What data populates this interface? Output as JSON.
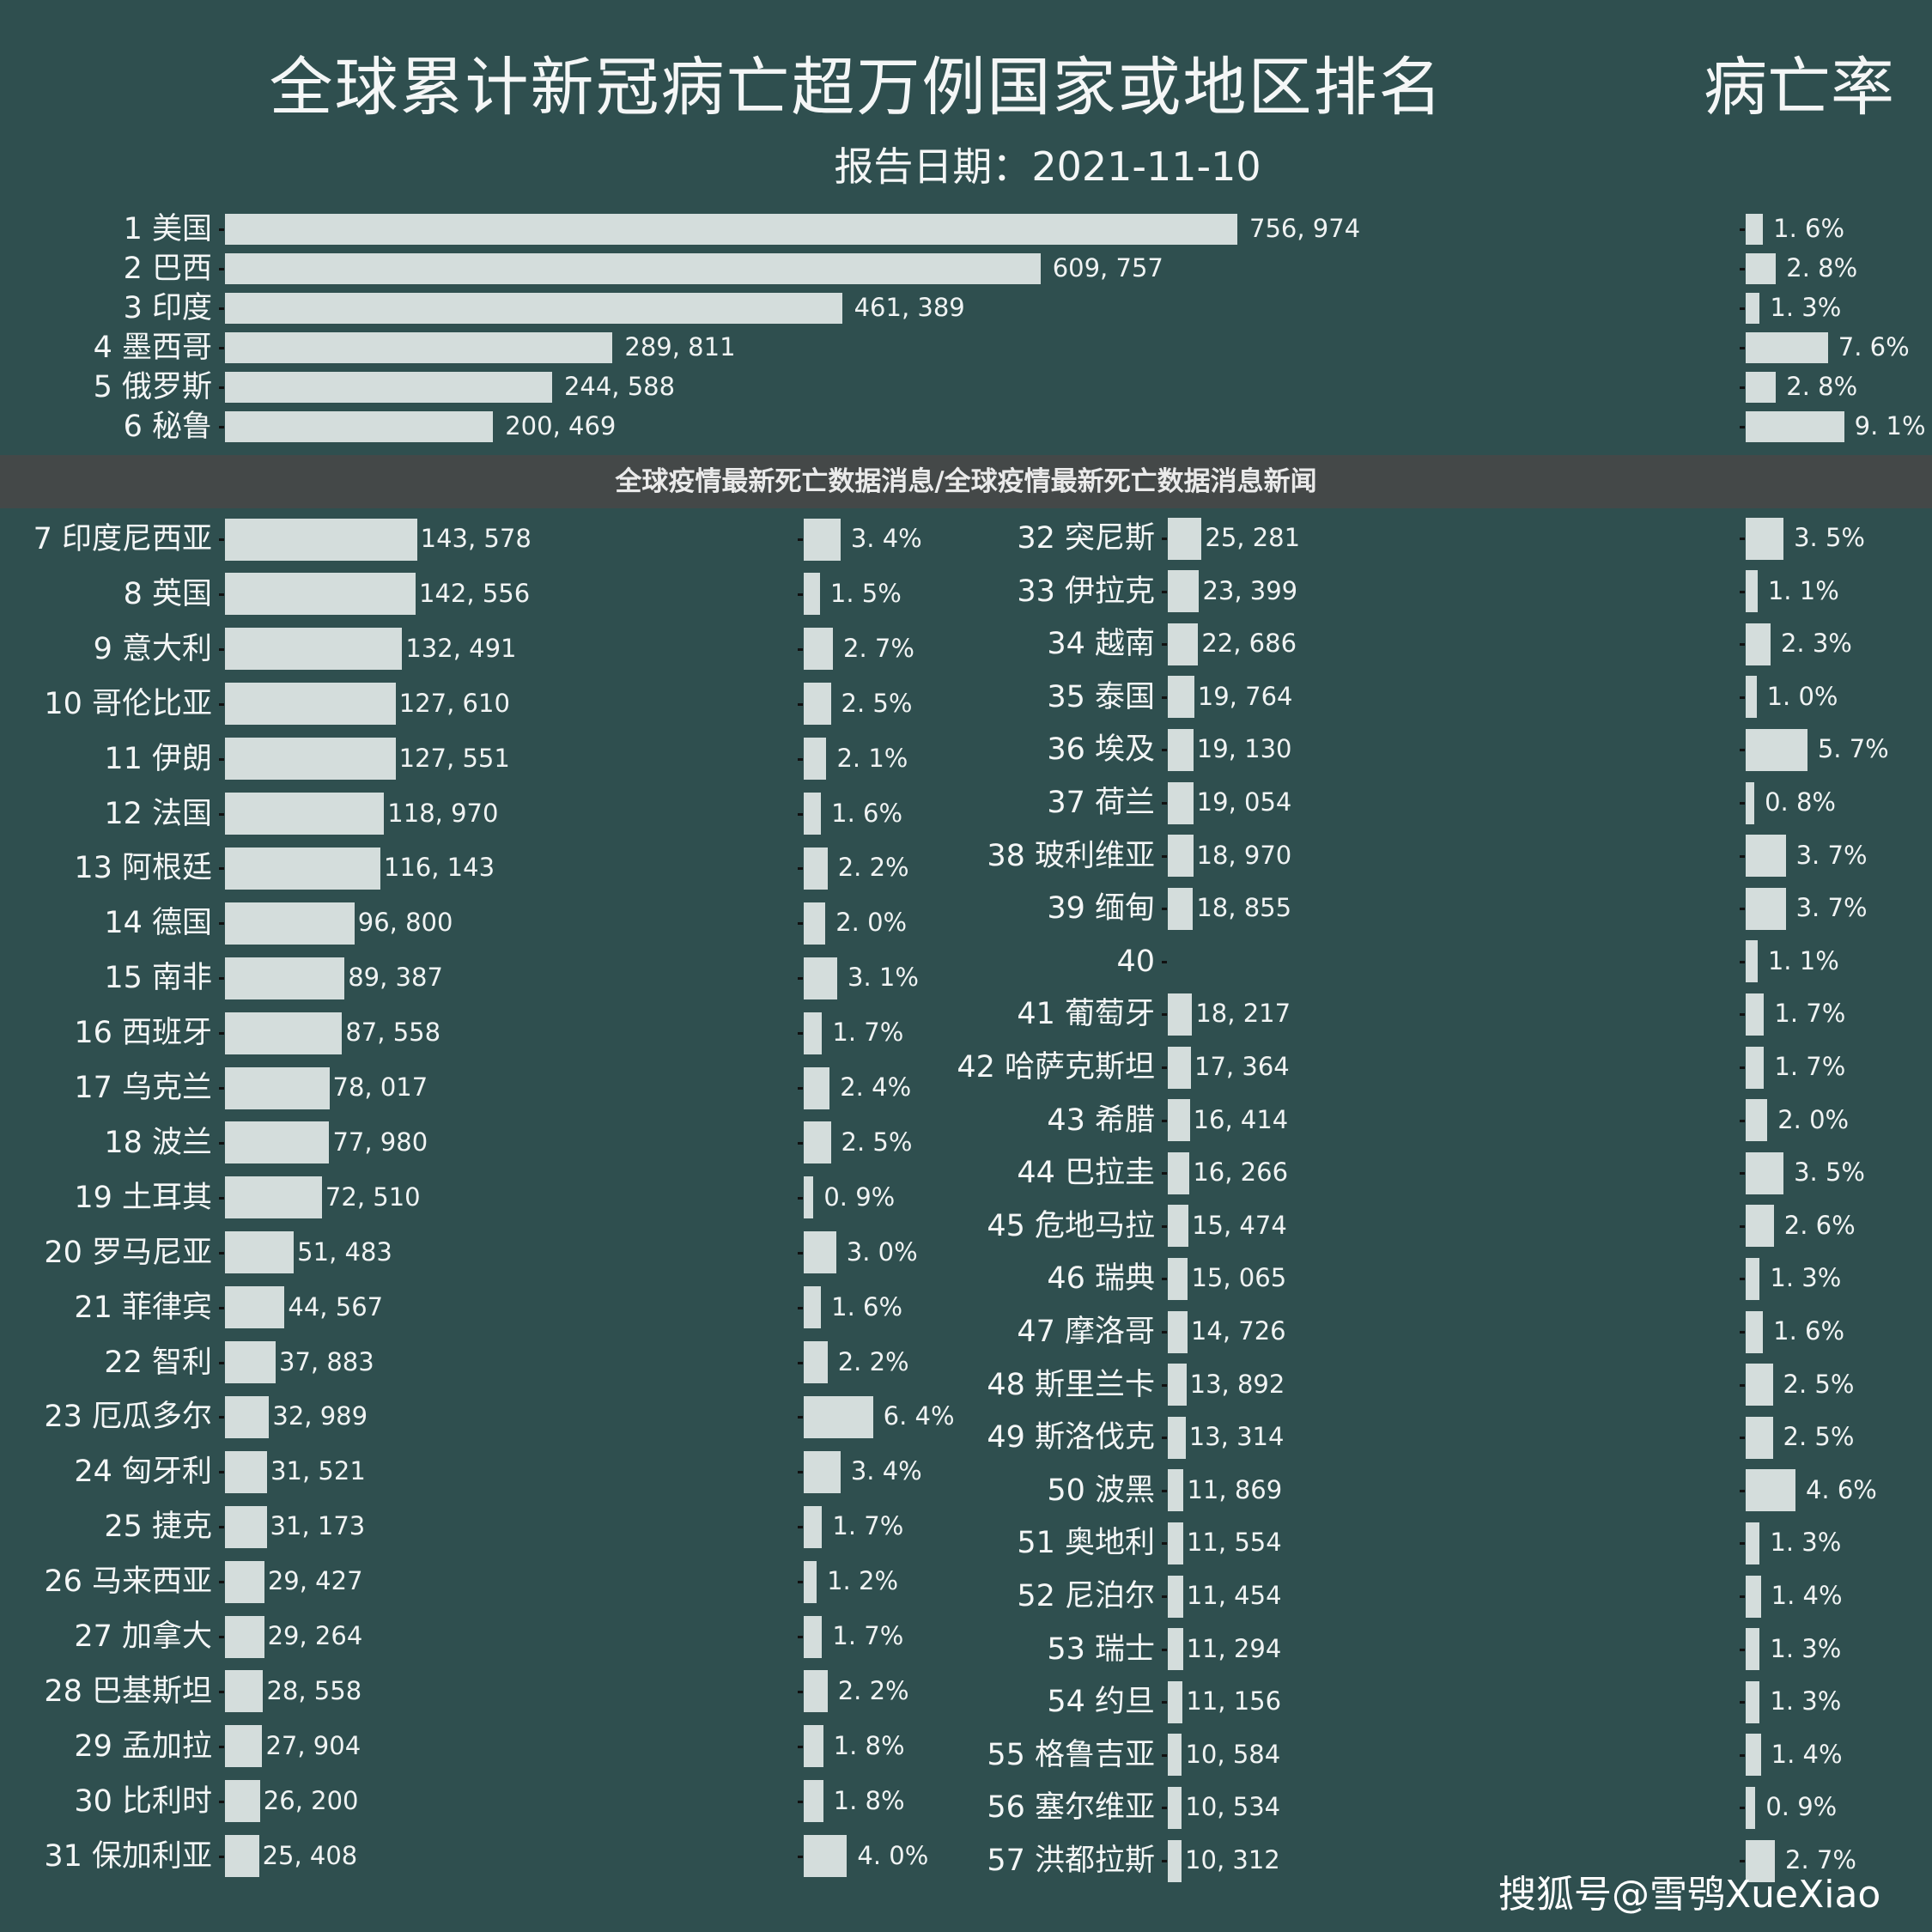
{
  "chart_data": {
    "type": "bar",
    "orientation": "horizontal",
    "title": "全球累计新冠病亡超万例国家或地区排名",
    "rate_title": "病亡率",
    "subtitle": "报告日期：2021-11-10",
    "colors": {
      "background": "#2f4f4f",
      "bar": "#d4dddc",
      "text": "#f4f6f6"
    },
    "grid": false,
    "rows": [
      {
        "rank": 1,
        "name": "美国",
        "value": 756974,
        "value_label": "756, 974",
        "rate": 1.6,
        "rate_label": "1. 6%"
      },
      {
        "rank": 2,
        "name": "巴西",
        "value": 609757,
        "value_label": "609, 757",
        "rate": 2.8,
        "rate_label": "2. 8%"
      },
      {
        "rank": 3,
        "name": "印度",
        "value": 461389,
        "value_label": "461, 389",
        "rate": 1.3,
        "rate_label": "1. 3%"
      },
      {
        "rank": 4,
        "name": "墨西哥",
        "value": 289811,
        "value_label": "289, 811",
        "rate": 7.6,
        "rate_label": "7. 6%"
      },
      {
        "rank": 5,
        "name": "俄罗斯",
        "value": 244588,
        "value_label": "244, 588",
        "rate": 2.8,
        "rate_label": "2. 8%"
      },
      {
        "rank": 6,
        "name": "秘鲁",
        "value": 200469,
        "value_label": "200, 469",
        "rate": 9.1,
        "rate_label": "9. 1%"
      },
      {
        "rank": 7,
        "name": "印度尼西亚",
        "value": 143578,
        "value_label": "143, 578",
        "rate": 3.4,
        "rate_label": "3. 4%"
      },
      {
        "rank": 8,
        "name": "英国",
        "value": 142556,
        "value_label": "142, 556",
        "rate": 1.5,
        "rate_label": "1. 5%"
      },
      {
        "rank": 9,
        "name": "意大利",
        "value": 132491,
        "value_label": "132, 491",
        "rate": 2.7,
        "rate_label": "2. 7%"
      },
      {
        "rank": 10,
        "name": "哥伦比亚",
        "value": 127610,
        "value_label": "127, 610",
        "rate": 2.5,
        "rate_label": "2. 5%"
      },
      {
        "rank": 11,
        "name": "伊朗",
        "value": 127551,
        "value_label": "127, 551",
        "rate": 2.1,
        "rate_label": "2. 1%"
      },
      {
        "rank": 12,
        "name": "法国",
        "value": 118970,
        "value_label": "118, 970",
        "rate": 1.6,
        "rate_label": "1. 6%"
      },
      {
        "rank": 13,
        "name": "阿根廷",
        "value": 116143,
        "value_label": "116, 143",
        "rate": 2.2,
        "rate_label": "2. 2%"
      },
      {
        "rank": 14,
        "name": "德国",
        "value": 96800,
        "value_label": "96, 800",
        "rate": 2.0,
        "rate_label": "2. 0%"
      },
      {
        "rank": 15,
        "name": "南非",
        "value": 89387,
        "value_label": "89, 387",
        "rate": 3.1,
        "rate_label": "3. 1%"
      },
      {
        "rank": 16,
        "name": "西班牙",
        "value": 87558,
        "value_label": "87, 558",
        "rate": 1.7,
        "rate_label": "1. 7%"
      },
      {
        "rank": 17,
        "name": "乌克兰",
        "value": 78017,
        "value_label": "78, 017",
        "rate": 2.4,
        "rate_label": "2. 4%"
      },
      {
        "rank": 18,
        "name": "波兰",
        "value": 77980,
        "value_label": "77, 980",
        "rate": 2.5,
        "rate_label": "2. 5%"
      },
      {
        "rank": 19,
        "name": "土耳其",
        "value": 72510,
        "value_label": "72, 510",
        "rate": 0.9,
        "rate_label": "0. 9%"
      },
      {
        "rank": 20,
        "name": "罗马尼亚",
        "value": 51483,
        "value_label": "51, 483",
        "rate": 3.0,
        "rate_label": "3. 0%"
      },
      {
        "rank": 21,
        "name": "菲律宾",
        "value": 44567,
        "value_label": "44, 567",
        "rate": 1.6,
        "rate_label": "1. 6%"
      },
      {
        "rank": 22,
        "name": "智利",
        "value": 37883,
        "value_label": "37, 883",
        "rate": 2.2,
        "rate_label": "2. 2%"
      },
      {
        "rank": 23,
        "name": "厄瓜多尔",
        "value": 32989,
        "value_label": "32, 989",
        "rate": 6.4,
        "rate_label": "6. 4%"
      },
      {
        "rank": 24,
        "name": "匈牙利",
        "value": 31521,
        "value_label": "31, 521",
        "rate": 3.4,
        "rate_label": "3. 4%"
      },
      {
        "rank": 25,
        "name": "捷克",
        "value": 31173,
        "value_label": "31, 173",
        "rate": 1.7,
        "rate_label": "1. 7%"
      },
      {
        "rank": 26,
        "name": "马来西亚",
        "value": 29427,
        "value_label": "29, 427",
        "rate": 1.2,
        "rate_label": "1. 2%"
      },
      {
        "rank": 27,
        "name": "加拿大",
        "value": 29264,
        "value_label": "29, 264",
        "rate": 1.7,
        "rate_label": "1. 7%"
      },
      {
        "rank": 28,
        "name": "巴基斯坦",
        "value": 28558,
        "value_label": "28, 558",
        "rate": 2.2,
        "rate_label": "2. 2%"
      },
      {
        "rank": 29,
        "name": "孟加拉",
        "value": 27904,
        "value_label": "27, 904",
        "rate": 1.8,
        "rate_label": "1. 8%"
      },
      {
        "rank": 30,
        "name": "比利时",
        "value": 26200,
        "value_label": "26, 200",
        "rate": 1.8,
        "rate_label": "1. 8%"
      },
      {
        "rank": 31,
        "name": "保加利亚",
        "value": 25408,
        "value_label": "25, 408",
        "rate": 4.0,
        "rate_label": "4. 0%"
      },
      {
        "rank": 32,
        "name": "突尼斯",
        "value": 25281,
        "value_label": "25, 281",
        "rate": 3.5,
        "rate_label": "3. 5%"
      },
      {
        "rank": 33,
        "name": "伊拉克",
        "value": 23399,
        "value_label": "23, 399",
        "rate": 1.1,
        "rate_label": "1. 1%"
      },
      {
        "rank": 34,
        "name": "越南",
        "value": 22686,
        "value_label": "22, 686",
        "rate": 2.3,
        "rate_label": "2. 3%"
      },
      {
        "rank": 35,
        "name": "泰国",
        "value": 19764,
        "value_label": "19, 764",
        "rate": 1.0,
        "rate_label": "1. 0%"
      },
      {
        "rank": 36,
        "name": "埃及",
        "value": 19130,
        "value_label": "19, 130",
        "rate": 5.7,
        "rate_label": "5. 7%"
      },
      {
        "rank": 37,
        "name": "荷兰",
        "value": 19054,
        "value_label": "19, 054",
        "rate": 0.8,
        "rate_label": "0. 8%"
      },
      {
        "rank": 38,
        "name": "玻利维亚",
        "value": 18970,
        "value_label": "18, 970",
        "rate": 3.7,
        "rate_label": "3. 7%"
      },
      {
        "rank": 39,
        "name": "缅甸",
        "value": 18855,
        "value_label": "18, 855",
        "rate": 3.7,
        "rate_label": "3. 7%"
      },
      {
        "rank": 40,
        "name": "",
        "value": null,
        "value_label": "",
        "rate": 1.1,
        "rate_label": "1. 1%"
      },
      {
        "rank": 41,
        "name": "葡萄牙",
        "value": 18217,
        "value_label": "18, 217",
        "rate": 1.7,
        "rate_label": "1. 7%"
      },
      {
        "rank": 42,
        "name": "哈萨克斯坦",
        "value": 17364,
        "value_label": "17, 364",
        "rate": 1.7,
        "rate_label": "1. 7%"
      },
      {
        "rank": 43,
        "name": "希腊",
        "value": 16414,
        "value_label": "16, 414",
        "rate": 2.0,
        "rate_label": "2. 0%"
      },
      {
        "rank": 44,
        "name": "巴拉圭",
        "value": 16266,
        "value_label": "16, 266",
        "rate": 3.5,
        "rate_label": "3. 5%"
      },
      {
        "rank": 45,
        "name": "危地马拉",
        "value": 15474,
        "value_label": "15, 474",
        "rate": 2.6,
        "rate_label": "2. 6%"
      },
      {
        "rank": 46,
        "name": "瑞典",
        "value": 15065,
        "value_label": "15, 065",
        "rate": 1.3,
        "rate_label": "1. 3%"
      },
      {
        "rank": 47,
        "name": "摩洛哥",
        "value": 14726,
        "value_label": "14, 726",
        "rate": 1.6,
        "rate_label": "1. 6%"
      },
      {
        "rank": 48,
        "name": "斯里兰卡",
        "value": 13892,
        "value_label": "13, 892",
        "rate": 2.5,
        "rate_label": "2. 5%"
      },
      {
        "rank": 49,
        "name": "斯洛伐克",
        "value": 13314,
        "value_label": "13, 314",
        "rate": 2.5,
        "rate_label": "2. 5%"
      },
      {
        "rank": 50,
        "name": "波黑",
        "value": 11869,
        "value_label": "11, 869",
        "rate": 4.6,
        "rate_label": "4. 6%"
      },
      {
        "rank": 51,
        "name": "奥地利",
        "value": 11554,
        "value_label": "11, 554",
        "rate": 1.3,
        "rate_label": "1. 3%"
      },
      {
        "rank": 52,
        "name": "尼泊尔",
        "value": 11454,
        "value_label": "11, 454",
        "rate": 1.4,
        "rate_label": "1. 4%"
      },
      {
        "rank": 53,
        "name": "瑞士",
        "value": 11294,
        "value_label": "11, 294",
        "rate": 1.3,
        "rate_label": "1. 3%"
      },
      {
        "rank": 54,
        "name": "约旦",
        "value": 11156,
        "value_label": "11, 156",
        "rate": 1.3,
        "rate_label": "1. 3%"
      },
      {
        "rank": 55,
        "name": "格鲁吉亚",
        "value": 10584,
        "value_label": "10, 584",
        "rate": 1.4,
        "rate_label": "1. 4%"
      },
      {
        "rank": 56,
        "name": "塞尔维亚",
        "value": 10534,
        "value_label": "10, 534",
        "rate": 0.9,
        "rate_label": "0. 9%"
      },
      {
        "rank": 57,
        "name": "洪都拉斯",
        "value": 10312,
        "value_label": "10, 312",
        "rate": 2.7,
        "rate_label": "2. 7%"
      }
    ]
  },
  "overlay": {
    "headline": "全球疫情最新死亡数据消息/全球疫情最新死亡数据消息新闻"
  },
  "watermark": "搜狐号@雪鸮XueXiao"
}
